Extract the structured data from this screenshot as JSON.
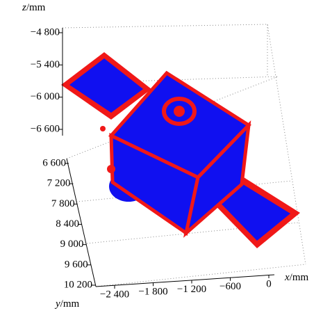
{
  "chart_data": {
    "type": "scatter3d",
    "xlabel": {
      "var": "x",
      "unit": "/mm"
    },
    "ylabel": {
      "var": "y",
      "unit": "/mm"
    },
    "zlabel": {
      "var": "z",
      "unit": "/mm"
    },
    "xlim": [
      -2400,
      0
    ],
    "xticks": [
      {
        "value": -2400,
        "label": "−2 400"
      },
      {
        "value": -1800,
        "label": "−1 800"
      },
      {
        "value": -1200,
        "label": "−1 200"
      },
      {
        "value": -600,
        "label": "−600"
      },
      0
    ],
    "ylim": [
      6600,
      10200
    ],
    "yticks": [
      {
        "value": 6600,
        "label": "6 600"
      },
      {
        "value": 7200,
        "label": "7 200"
      },
      {
        "value": 7800,
        "label": "7 800"
      },
      {
        "value": 8400,
        "label": "8 400"
      },
      {
        "value": 9000,
        "label": "9 000"
      },
      {
        "value": 9600,
        "label": "9 600"
      },
      {
        "value": 10200,
        "label": "10 200"
      }
    ],
    "zlim": [
      -4800,
      -6600
    ],
    "zticks": [
      {
        "value": -4800,
        "label": "−4 800"
      },
      {
        "value": -5400,
        "label": "−5 400"
      },
      {
        "value": -6000,
        "label": "−6 000"
      },
      {
        "value": -6600,
        "label": "−6 600"
      }
    ]
  }
}
